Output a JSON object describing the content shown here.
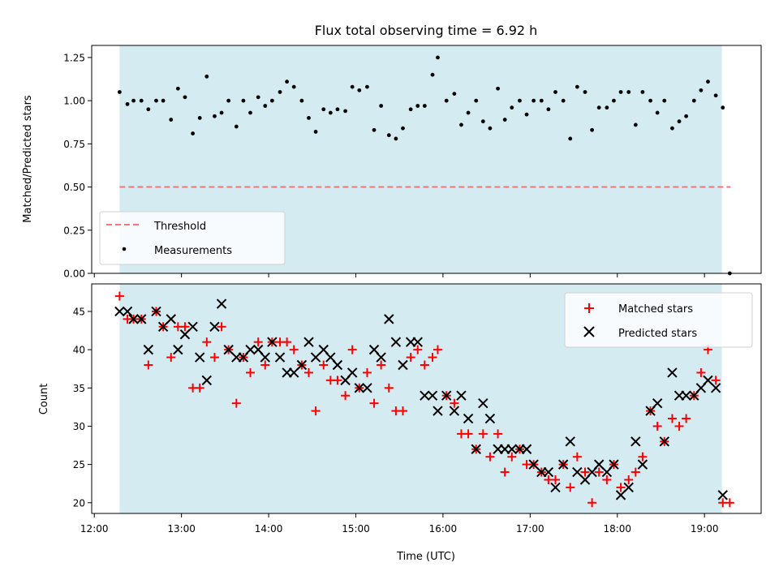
{
  "chart_data": [
    {
      "type": "scatter",
      "title": "Flux total observing time = 6.92 h",
      "ylabel": "Matched/Predicted stars",
      "xlabel": "",
      "ylim": [
        0,
        1.32
      ],
      "yticks": [
        0.0,
        0.25,
        0.5,
        0.75,
        1.0,
        1.25
      ],
      "ytick_labels": [
        "0.00",
        "0.25",
        "0.50",
        "0.75",
        "1.00",
        "1.25"
      ],
      "shaded_span": [
        12.29,
        19.2
      ],
      "threshold": {
        "name": "Threshold",
        "value": 0.5,
        "x_range": [
          12.29,
          19.3
        ],
        "color": "#f07878"
      },
      "legend": {
        "position": "lower-left",
        "entries": [
          "Threshold",
          "Measurements"
        ]
      },
      "series": [
        {
          "name": "Measurements",
          "color": "#000000",
          "x": [
            12.29,
            12.38,
            12.45,
            12.54,
            12.62,
            12.71,
            12.79,
            12.88,
            12.96,
            13.04,
            13.13,
            13.21,
            13.29,
            13.38,
            13.46,
            13.54,
            13.63,
            13.71,
            13.79,
            13.88,
            13.96,
            14.04,
            14.13,
            14.21,
            14.29,
            14.38,
            14.46,
            14.54,
            14.63,
            14.71,
            14.79,
            14.88,
            14.96,
            15.04,
            15.13,
            15.21,
            15.29,
            15.38,
            15.46,
            15.54,
            15.63,
            15.71,
            15.79,
            15.88,
            15.94,
            16.04,
            16.13,
            16.21,
            16.29,
            16.38,
            16.46,
            16.54,
            16.63,
            16.71,
            16.79,
            16.88,
            16.96,
            17.04,
            17.13,
            17.21,
            17.29,
            17.38,
            17.46,
            17.54,
            17.63,
            17.71,
            17.79,
            17.88,
            17.96,
            18.04,
            18.13,
            18.21,
            18.29,
            18.38,
            18.46,
            18.54,
            18.63,
            18.71,
            18.79,
            18.88,
            18.96,
            19.04,
            19.13,
            19.21,
            19.29
          ],
          "values": [
            1.05,
            0.98,
            1.0,
            1.0,
            0.95,
            1.0,
            1.0,
            0.89,
            1.07,
            1.02,
            0.81,
            0.9,
            1.14,
            0.91,
            0.93,
            1.0,
            0.85,
            1.0,
            0.93,
            1.02,
            0.97,
            1.0,
            1.05,
            1.11,
            1.08,
            1.0,
            0.9,
            0.82,
            0.95,
            0.93,
            0.95,
            0.94,
            1.08,
            1.06,
            1.08,
            0.83,
            0.97,
            0.8,
            0.78,
            0.84,
            0.95,
            0.97,
            0.97,
            1.15,
            1.25,
            1.0,
            1.04,
            0.86,
            0.93,
            1.0,
            0.88,
            0.84,
            1.07,
            0.89,
            0.96,
            1.0,
            0.92,
            1.0,
            1.0,
            0.95,
            1.05,
            1.0,
            0.78,
            1.08,
            1.05,
            0.83,
            0.96,
            0.96,
            1.0,
            1.05,
            1.05,
            0.86,
            1.05,
            1.0,
            0.93,
            1.0,
            0.84,
            0.88,
            0.91,
            1.0,
            1.06,
            1.11,
            1.03,
            0.96,
            0.0
          ]
        }
      ]
    },
    {
      "type": "scatter",
      "title": "",
      "xlabel": "Time (UTC)",
      "ylabel": "Count",
      "xlim": [
        11.97,
        19.65
      ],
      "ylim": [
        18.6,
        48.6
      ],
      "xticks": [
        12,
        13,
        14,
        15,
        16,
        17,
        18,
        19
      ],
      "xtick_labels": [
        "12:00",
        "13:00",
        "14:00",
        "15:00",
        "16:00",
        "17:00",
        "18:00",
        "19:00"
      ],
      "yticks": [
        20,
        25,
        30,
        35,
        40,
        45
      ],
      "ytick_labels": [
        "20",
        "25",
        "30",
        "35",
        "40",
        "45"
      ],
      "shaded_span": [
        12.29,
        19.2
      ],
      "legend": {
        "position": "top-right",
        "entries": [
          "Matched stars",
          "Predicted stars"
        ]
      },
      "series": [
        {
          "name": "Matched stars",
          "marker": "plus",
          "color": "#ff0000",
          "x": [
            12.29,
            12.38,
            12.45,
            12.54,
            12.62,
            12.71,
            12.79,
            12.88,
            12.96,
            13.04,
            13.13,
            13.21,
            13.29,
            13.38,
            13.46,
            13.54,
            13.63,
            13.71,
            13.79,
            13.88,
            13.96,
            14.04,
            14.13,
            14.21,
            14.29,
            14.38,
            14.46,
            14.54,
            14.63,
            14.71,
            14.79,
            14.88,
            14.96,
            15.04,
            15.13,
            15.21,
            15.29,
            15.38,
            15.46,
            15.54,
            15.63,
            15.71,
            15.79,
            15.88,
            15.94,
            16.04,
            16.13,
            16.21,
            16.29,
            16.38,
            16.46,
            16.54,
            16.63,
            16.71,
            16.79,
            16.88,
            16.96,
            17.04,
            17.13,
            17.21,
            17.29,
            17.38,
            17.46,
            17.54,
            17.63,
            17.71,
            17.79,
            17.88,
            17.96,
            18.04,
            18.13,
            18.21,
            18.29,
            18.38,
            18.46,
            18.54,
            18.63,
            18.71,
            18.79,
            18.88,
            18.96,
            19.04,
            19.13,
            19.21,
            19.29
          ],
          "values": [
            47,
            44,
            44,
            44,
            38,
            45,
            43,
            39,
            43,
            43,
            35,
            35,
            41,
            39,
            43,
            40,
            33,
            39,
            37,
            41,
            38,
            41,
            41,
            41,
            40,
            38,
            37,
            32,
            38,
            36,
            36,
            34,
            40,
            35,
            37,
            33,
            38,
            35,
            32,
            32,
            39,
            40,
            38,
            39,
            40,
            34,
            33,
            29,
            29,
            27,
            29,
            26,
            29,
            24,
            26,
            27,
            25,
            25,
            24,
            23,
            23,
            25,
            22,
            26,
            24,
            20,
            24,
            23,
            25,
            22,
            23,
            24,
            26,
            32,
            30,
            28,
            31,
            30,
            31,
            34,
            37,
            40,
            36,
            20,
            20
          ]
        },
        {
          "name": "Predicted stars",
          "marker": "x",
          "color": "#000000",
          "x": [
            12.29,
            12.38,
            12.45,
            12.54,
            12.62,
            12.71,
            12.79,
            12.88,
            12.96,
            13.04,
            13.13,
            13.21,
            13.29,
            13.38,
            13.46,
            13.54,
            13.63,
            13.71,
            13.79,
            13.88,
            13.96,
            14.04,
            14.13,
            14.21,
            14.29,
            14.38,
            14.46,
            14.54,
            14.63,
            14.71,
            14.79,
            14.88,
            14.96,
            15.04,
            15.13,
            15.21,
            15.29,
            15.38,
            15.46,
            15.54,
            15.63,
            15.71,
            15.79,
            15.88,
            15.94,
            16.04,
            16.13,
            16.21,
            16.29,
            16.38,
            16.46,
            16.54,
            16.63,
            16.71,
            16.79,
            16.88,
            16.96,
            17.04,
            17.13,
            17.21,
            17.29,
            17.38,
            17.46,
            17.54,
            17.63,
            17.71,
            17.79,
            17.88,
            17.96,
            18.04,
            18.13,
            18.21,
            18.29,
            18.38,
            18.46,
            18.54,
            18.63,
            18.71,
            18.79,
            18.88,
            18.96,
            19.04,
            19.13,
            19.21
          ],
          "values": [
            45,
            45,
            44,
            44,
            40,
            45,
            43,
            44,
            40,
            42,
            43,
            39,
            36,
            43,
            46,
            40,
            39,
            39,
            40,
            40,
            39,
            41,
            39,
            37,
            37,
            38,
            41,
            39,
            40,
            39,
            38,
            36,
            37,
            35,
            35,
            40,
            39,
            44,
            41,
            38,
            41,
            41,
            34,
            34,
            32,
            34,
            32,
            34,
            31,
            27,
            33,
            31,
            27,
            27,
            27,
            27,
            27,
            25,
            24,
            24,
            22,
            25,
            28,
            24,
            23,
            24,
            25,
            24,
            25,
            21,
            22,
            28,
            25,
            32,
            33,
            28,
            37,
            34,
            34,
            34,
            35,
            36,
            35,
            21
          ]
        }
      ]
    }
  ]
}
